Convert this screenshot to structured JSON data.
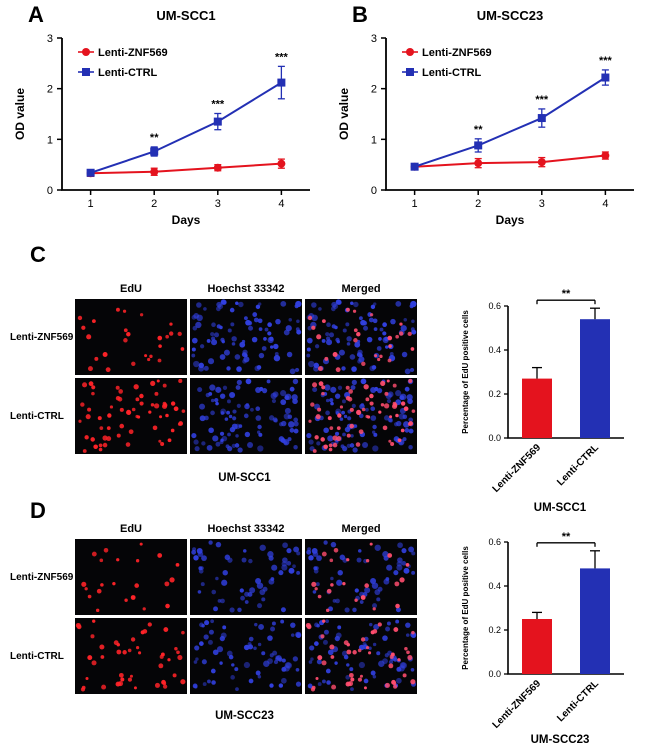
{
  "figure": {
    "background": "#ffffff"
  },
  "colors": {
    "red": "#e4131e",
    "blue": "#2330b4",
    "axis": "#000000",
    "edu_dot": "#ff2328",
    "nuclei_dot": "#3140e0",
    "merged_edu_dot": "#ff4d6e"
  },
  "panels": {
    "A": {
      "label": "A"
    },
    "B": {
      "label": "B"
    },
    "C": {
      "label": "C",
      "columns": [
        "EdU",
        "Hoechst 33342",
        "Merged"
      ],
      "rows": [
        {
          "label": "Lenti-ZNF569",
          "edu_dots": 26,
          "nuclei_dots": 88,
          "seed": 11
        },
        {
          "label": "Lenti-CTRL",
          "edu_dots": 62,
          "nuclei_dots": 96,
          "seed": 22
        }
      ],
      "caption": "UM-SCC1"
    },
    "D": {
      "label": "D",
      "columns": [
        "EdU",
        "Hoechst 33342",
        "Merged"
      ],
      "rows": [
        {
          "label": "Lenti-ZNF569",
          "edu_dots": 22,
          "nuclei_dots": 58,
          "seed": 33
        },
        {
          "label": "Lenti-CTRL",
          "edu_dots": 46,
          "nuclei_dots": 72,
          "seed": 44
        }
      ],
      "caption": "UM-SCC23"
    }
  },
  "chart_data": [
    {
      "id": "chartA",
      "type": "line",
      "title": "UM-SCC1",
      "xlabel": "Days",
      "ylabel": "OD value",
      "x": [
        1,
        2,
        3,
        4
      ],
      "xlim": [
        0.55,
        4.45
      ],
      "ylim": [
        0,
        3
      ],
      "yticks": [
        0,
        1,
        2,
        3
      ],
      "legend_position": "top-left",
      "series": [
        {
          "name": "Lenti-ZNF569",
          "color": "#e4131e",
          "marker": "circle",
          "values": [
            0.33,
            0.36,
            0.44,
            0.52
          ],
          "errors": [
            0.06,
            0.07,
            0.06,
            0.09
          ]
        },
        {
          "name": "Lenti-CTRL",
          "color": "#2330b4",
          "marker": "square",
          "values": [
            0.34,
            0.76,
            1.35,
            2.12
          ],
          "errors": [
            0.06,
            0.09,
            0.16,
            0.32
          ]
        }
      ],
      "annotations": [
        {
          "x": 2,
          "text": "**"
        },
        {
          "x": 3,
          "text": "***"
        },
        {
          "x": 4,
          "text": "***"
        }
      ]
    },
    {
      "id": "chartB",
      "type": "line",
      "title": "UM-SCC23",
      "xlabel": "Days",
      "ylabel": "OD value",
      "x": [
        1,
        2,
        3,
        4
      ],
      "xlim": [
        0.55,
        4.45
      ],
      "ylim": [
        0,
        3
      ],
      "yticks": [
        0,
        1,
        2,
        3
      ],
      "legend_position": "top-left",
      "series": [
        {
          "name": "Lenti-ZNF569",
          "color": "#e4131e",
          "marker": "circle",
          "values": [
            0.46,
            0.53,
            0.55,
            0.68
          ],
          "errors": [
            0.06,
            0.09,
            0.09,
            0.07
          ]
        },
        {
          "name": "Lenti-CTRL",
          "color": "#2330b4",
          "marker": "square",
          "values": [
            0.46,
            0.88,
            1.42,
            2.22
          ],
          "errors": [
            0.06,
            0.13,
            0.18,
            0.15
          ]
        }
      ],
      "annotations": [
        {
          "x": 2,
          "text": "**"
        },
        {
          "x": 3,
          "text": "***"
        },
        {
          "x": 4,
          "text": "***"
        }
      ]
    },
    {
      "id": "chartC",
      "type": "bar",
      "ylabel": "Percentage of EdU positive cells",
      "categories": [
        "Lenti-ZNF569",
        "Lenti-CTRL"
      ],
      "values": [
        0.27,
        0.54
      ],
      "errors": [
        0.05,
        0.05
      ],
      "bar_colors": [
        "#e4131e",
        "#2330b4"
      ],
      "ylim": [
        0,
        0.6
      ],
      "yticks": [
        0.0,
        0.2,
        0.4,
        0.6
      ],
      "significance": "**",
      "caption": "UM-SCC1"
    },
    {
      "id": "chartD",
      "type": "bar",
      "ylabel": "Percentage of EdU positive cells",
      "categories": [
        "Lenti-ZNF569",
        "Lenti-CTRL"
      ],
      "values": [
        0.25,
        0.48
      ],
      "errors": [
        0.03,
        0.08
      ],
      "bar_colors": [
        "#e4131e",
        "#2330b4"
      ],
      "ylim": [
        0,
        0.6
      ],
      "yticks": [
        0.0,
        0.2,
        0.4,
        0.6
      ],
      "significance": "**",
      "caption": "UM-SCC23"
    }
  ]
}
